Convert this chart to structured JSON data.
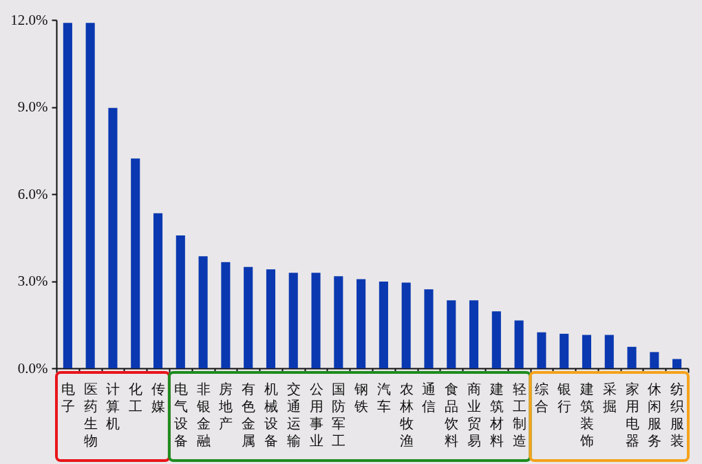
{
  "chart_data": {
    "type": "bar",
    "categories": [
      "电子",
      "医药生物",
      "计算机",
      "化工",
      "传媒",
      "电气设备",
      "非银金融",
      "房地产",
      "有色金属",
      "机械设备",
      "交通运输",
      "公用事业",
      "国防军工",
      "钢铁",
      "汽车",
      "农林牧渔",
      "通信",
      "食品饮料",
      "商业贸易",
      "建筑材料",
      "轻工制造",
      "综合",
      "银行",
      "建筑装饰",
      "采掘",
      "家用电器",
      "休闲服务",
      "纺织服装"
    ],
    "values": [
      11.9,
      11.9,
      8.97,
      7.23,
      5.34,
      4.58,
      3.86,
      3.66,
      3.49,
      3.41,
      3.29,
      3.29,
      3.17,
      3.07,
      2.99,
      2.95,
      2.72,
      2.34,
      2.34,
      1.96,
      1.65,
      1.24,
      1.19,
      1.15,
      1.15,
      0.74,
      0.56,
      0.32
    ],
    "color": "#0a38b0",
    "ylim": [
      0,
      12
    ],
    "yticks": [
      {
        "value": 0,
        "label": "0.0%"
      },
      {
        "value": 3,
        "label": "3.0%"
      },
      {
        "value": 6,
        "label": "6.0%"
      },
      {
        "value": 9,
        "label": "9.0%"
      },
      {
        "value": 12,
        "label": "12.0%"
      }
    ]
  }
}
